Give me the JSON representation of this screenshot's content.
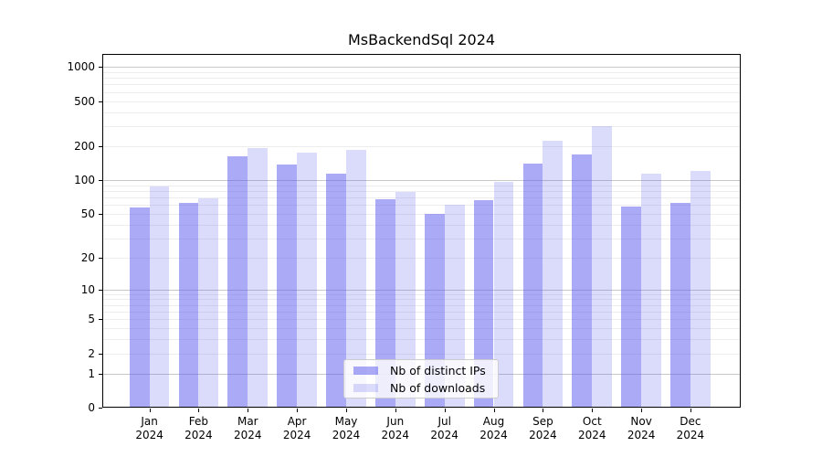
{
  "title": "MsBackendSql 2024",
  "chart_data": {
    "type": "bar",
    "title": "MsBackendSql 2024",
    "categories": [
      "Jan",
      "Feb",
      "Mar",
      "Apr",
      "May",
      "Jun",
      "Jul",
      "Aug",
      "Sep",
      "Oct",
      "Nov",
      "Dec"
    ],
    "year": "2024",
    "series": [
      {
        "name": "Nb of distinct IPs",
        "color": "rgba(85,85,238,0.5)",
        "values": [
          57,
          62,
          163,
          138,
          114,
          68,
          50,
          66,
          139,
          170,
          58,
          62
        ]
      },
      {
        "name": "Nb of downloads",
        "color": "rgba(85,85,238,0.21)",
        "values": [
          88,
          69,
          191,
          174,
          185,
          78,
          60,
          97,
          221,
          300,
          114,
          121
        ]
      }
    ],
    "yticks": [
      0,
      1,
      2,
      5,
      10,
      20,
      50,
      100,
      200,
      500,
      1000
    ],
    "ylim": [
      0,
      1300
    ],
    "yscale": "log1p",
    "xlabel": "",
    "ylabel": "",
    "grid": "on",
    "legend_position": "lower-center"
  },
  "colors": {
    "background": "#ffffff",
    "bar_distinct_ips": "rgba(85,85,238,0.5)",
    "bar_downloads": "rgba(85,85,238,0.21)",
    "grid_major": "#c8c8c8",
    "grid_minor": "#ededed",
    "axis": "#000000",
    "legend_border": "#cccccc",
    "text": "#000000"
  }
}
